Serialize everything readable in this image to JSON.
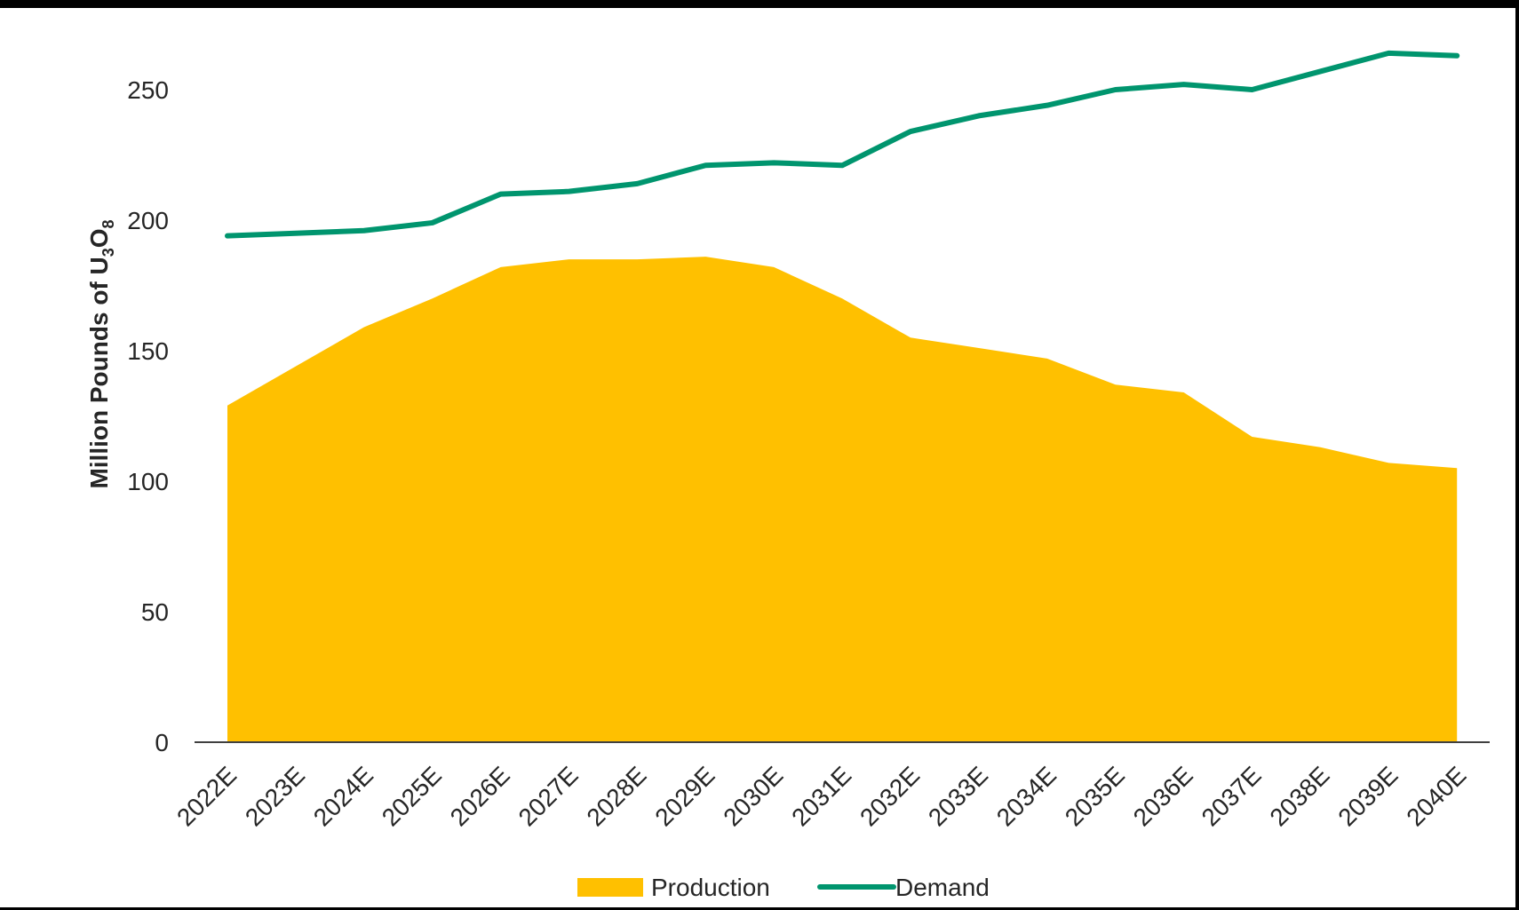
{
  "chart_data": {
    "type": "area",
    "title": "",
    "xlabel": "",
    "ylabel": {
      "prefix": "Million Pounds of U",
      "sub1": "3",
      "mid": "O",
      "sub2": "8"
    },
    "ylim": [
      0,
      270
    ],
    "yticks": [
      0,
      50,
      100,
      150,
      200,
      250
    ],
    "categories": [
      "2022E",
      "2023E",
      "2024E",
      "2025E",
      "2026E",
      "2027E",
      "2028E",
      "2029E",
      "2030E",
      "2031E",
      "2032E",
      "2033E",
      "2034E",
      "2035E",
      "2036E",
      "2037E",
      "2038E",
      "2039E",
      "2040E"
    ],
    "grid": false,
    "legend_position": "bottom",
    "series": [
      {
        "name": "Production",
        "type": "area",
        "color": "#FFC000",
        "values": [
          129,
          144,
          159,
          170,
          182,
          185,
          185,
          186,
          182,
          170,
          155,
          151,
          147,
          137,
          134,
          117,
          113,
          107,
          105
        ]
      },
      {
        "name": "Demand",
        "type": "line",
        "color": "#00956E",
        "values": [
          194,
          195,
          196,
          199,
          210,
          211,
          214,
          221,
          222,
          221,
          234,
          240,
          244,
          250,
          252,
          250,
          257,
          264,
          263
        ]
      }
    ]
  }
}
